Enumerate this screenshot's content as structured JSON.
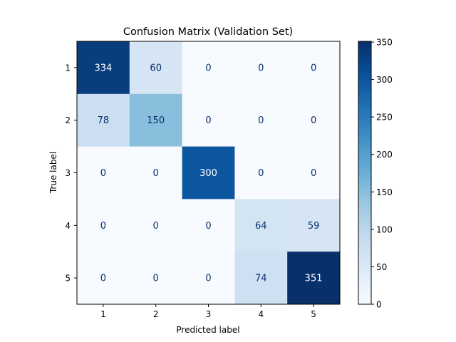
{
  "chart_data": {
    "type": "heatmap",
    "title": "Confusion Matrix (Validation Set)",
    "xlabel": "Predicted label",
    "ylabel": "True label",
    "x_categories": [
      "1",
      "2",
      "3",
      "4",
      "5"
    ],
    "y_categories": [
      "1",
      "2",
      "3",
      "4",
      "5"
    ],
    "values": [
      [
        334,
        60,
        0,
        0,
        0
      ],
      [
        78,
        150,
        0,
        0,
        0
      ],
      [
        0,
        0,
        300,
        0,
        0
      ],
      [
        0,
        0,
        0,
        64,
        59
      ],
      [
        0,
        0,
        0,
        74,
        351
      ]
    ],
    "colormap": "Blues",
    "colorbar": {
      "range": [
        0,
        351
      ],
      "ticks": [
        0,
        50,
        100,
        150,
        200,
        250,
        300,
        350
      ],
      "tick_labels": [
        "0",
        "50",
        "100",
        "150",
        "200",
        "250",
        "300",
        "350"
      ]
    },
    "text_colors": {
      "dark": "#08306b",
      "light": "#ffffff"
    }
  }
}
